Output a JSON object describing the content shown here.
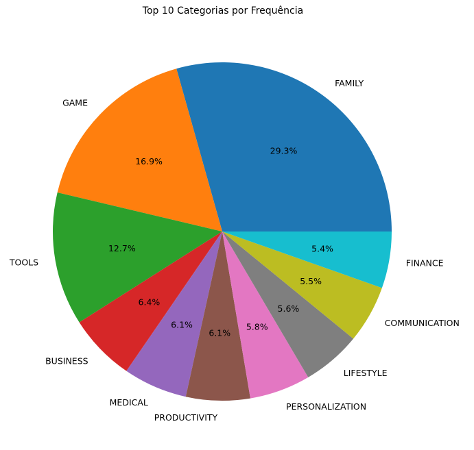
{
  "chart_data": {
    "type": "pie",
    "title": "Top 10 Categorias por Frequência",
    "slices": [
      {
        "label": "FAMILY",
        "pct_label": "29.3%",
        "value": 29.3,
        "color": "#1f77b4"
      },
      {
        "label": "GAME",
        "pct_label": "16.9%",
        "value": 16.9,
        "color": "#ff7f0e"
      },
      {
        "label": "TOOLS",
        "pct_label": "12.7%",
        "value": 12.7,
        "color": "#2ca02c"
      },
      {
        "label": "BUSINESS",
        "pct_label": "6.4%",
        "value": 6.4,
        "color": "#d62728"
      },
      {
        "label": "MEDICAL",
        "pct_label": "6.1%",
        "value": 6.1,
        "color": "#9467bd"
      },
      {
        "label": "PRODUCTIVITY",
        "pct_label": "6.1%",
        "value": 6.1,
        "color": "#8c564b"
      },
      {
        "label": "PERSONALIZATION",
        "pct_label": "5.8%",
        "value": 5.8,
        "color": "#e377c2"
      },
      {
        "label": "LIFESTYLE",
        "pct_label": "5.6%",
        "value": 5.6,
        "color": "#7f7f7f"
      },
      {
        "label": "COMMUNICATION",
        "pct_label": "5.5%",
        "value": 5.5,
        "color": "#bcbd22"
      },
      {
        "label": "FINANCE",
        "pct_label": "5.4%",
        "value": 5.4,
        "color": "#17becf"
      }
    ]
  }
}
